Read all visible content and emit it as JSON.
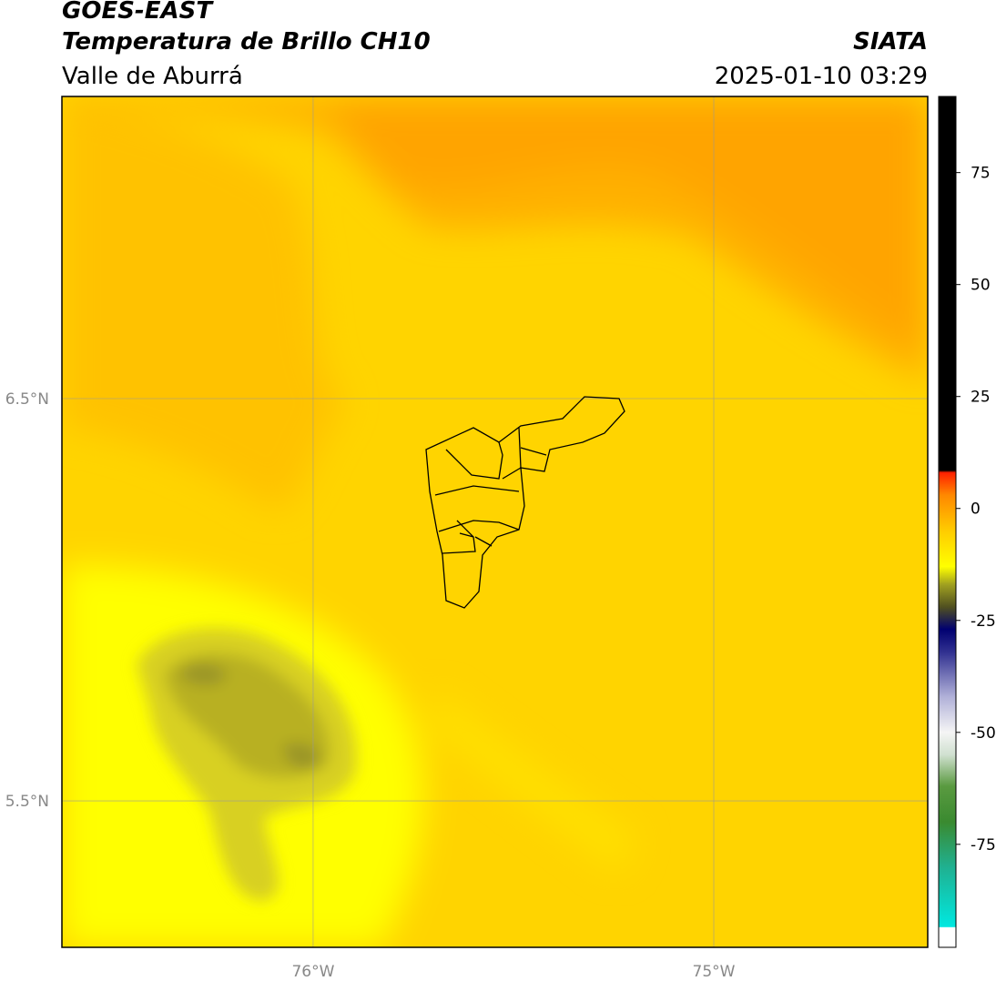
{
  "header": {
    "title": "GOES-EAST",
    "subtitle": "Temperatura de Brillo CH10",
    "source": "SIATA",
    "region": "Valle de Aburrá",
    "timestamp": "2025-01-10 03:29"
  },
  "map": {
    "xlim": [
      -76.627,
      -74.466
    ],
    "ylim": [
      5.136,
      7.251
    ],
    "xticks": [
      {
        "value": -76,
        "label": "76°W"
      },
      {
        "value": -75,
        "label": "75°W"
      }
    ],
    "yticks": [
      {
        "value": 6.5,
        "label": "6.5°N"
      },
      {
        "value": 5.5,
        "label": "5.5°N"
      }
    ],
    "grid": true
  },
  "colorbar": {
    "ylim": [
      -98,
      92
    ],
    "yticks": [
      75,
      50,
      25,
      0,
      -25,
      -50,
      -75
    ],
    "stops": [
      {
        "value": -98,
        "color": "#ffffff"
      },
      {
        "value": -93.6,
        "color": "#ffffff"
      },
      {
        "value": -93.4,
        "color": "#00e8e0"
      },
      {
        "value": -80,
        "color": "#20b090"
      },
      {
        "value": -70,
        "color": "#3a8a30"
      },
      {
        "value": -62,
        "color": "#5a9a40"
      },
      {
        "value": -55,
        "color": "#d0e0d0"
      },
      {
        "value": -50,
        "color": "#f5f5f5"
      },
      {
        "value": -42,
        "color": "#b0b0d8"
      },
      {
        "value": -32,
        "color": "#303090"
      },
      {
        "value": -27,
        "color": "#000070"
      },
      {
        "value": -22,
        "color": "#505020"
      },
      {
        "value": -17,
        "color": "#a0a020"
      },
      {
        "value": -13,
        "color": "#ffff00"
      },
      {
        "value": -5,
        "color": "#ffcc00"
      },
      {
        "value": 3,
        "color": "#ff8800"
      },
      {
        "value": 8,
        "color": "#ff2000"
      },
      {
        "value": 8.5,
        "color": "#000000"
      },
      {
        "value": 92,
        "color": "#000000"
      }
    ]
  }
}
